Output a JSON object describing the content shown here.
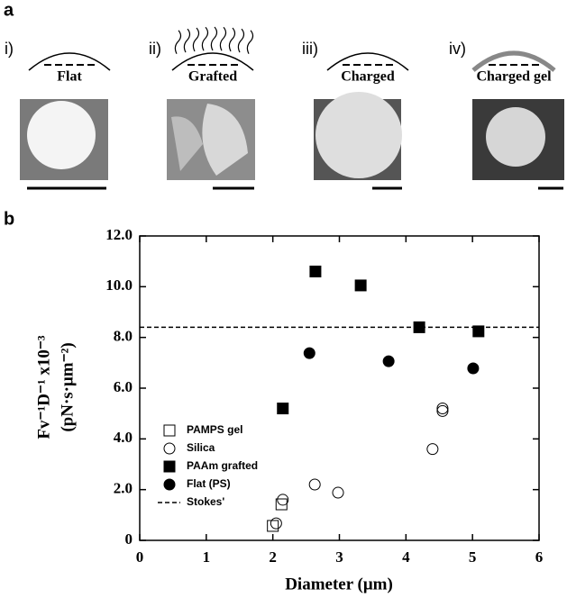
{
  "panel_a": {
    "label": "a",
    "items": [
      {
        "numeral": "i)",
        "label": "Flat"
      },
      {
        "numeral": "ii)",
        "label": "Grafted"
      },
      {
        "numeral": "iii)",
        "label": "Charged"
      },
      {
        "numeral": "iv)",
        "label": "Charged gel"
      }
    ]
  },
  "chart_data": {
    "type": "scatter",
    "panel_label": "b",
    "x_label": "Diameter (μm)",
    "y_label": [
      "Fv⁻¹D⁻¹ x10⁻³",
      "(pN·s·μm⁻²)"
    ],
    "xlim": [
      0,
      6
    ],
    "xticks": [
      0,
      1,
      2,
      3,
      4,
      5,
      6
    ],
    "ylim": [
      0,
      12
    ],
    "yticks": [
      0,
      {
        "value": 2,
        "label": "2.0"
      },
      {
        "value": 4,
        "label": "4.0"
      },
      {
        "value": 6,
        "label": "6.0"
      },
      {
        "value": 8,
        "label": "8.0"
      },
      {
        "value": 10,
        "label": "10.0"
      },
      {
        "value": 12,
        "label": "12.0"
      }
    ],
    "series": [
      {
        "name": "PAMPS gel",
        "marker": "square",
        "filled": false,
        "color": "#000000",
        "x": [
          2.0,
          2.13
        ],
        "values": [
          0.57,
          1.42
        ]
      },
      {
        "name": "Silica",
        "marker": "circle",
        "filled": false,
        "color": "#000000",
        "x": [
          2.05,
          2.15,
          2.63,
          2.98,
          4.4,
          4.55,
          4.55
        ],
        "values": [
          0.67,
          1.6,
          2.2,
          1.88,
          3.6,
          5.2,
          5.1
        ]
      },
      {
        "name": "PAAm grafted",
        "marker": "square",
        "filled": true,
        "color": "#000000",
        "x": [
          2.15,
          2.64,
          3.32,
          4.2,
          5.09
        ],
        "values": [
          5.2,
          10.6,
          10.05,
          8.4,
          8.24
        ]
      },
      {
        "name": "Flat (PS)",
        "marker": "circle",
        "filled": true,
        "color": "#000000",
        "x": [
          2.55,
          3.74,
          5.01
        ],
        "values": [
          7.38,
          7.06,
          6.78
        ]
      }
    ],
    "reference_lines": [
      {
        "name": "Stokes'",
        "value": 8.4,
        "style": "dashed",
        "color": "#000000"
      }
    ]
  }
}
